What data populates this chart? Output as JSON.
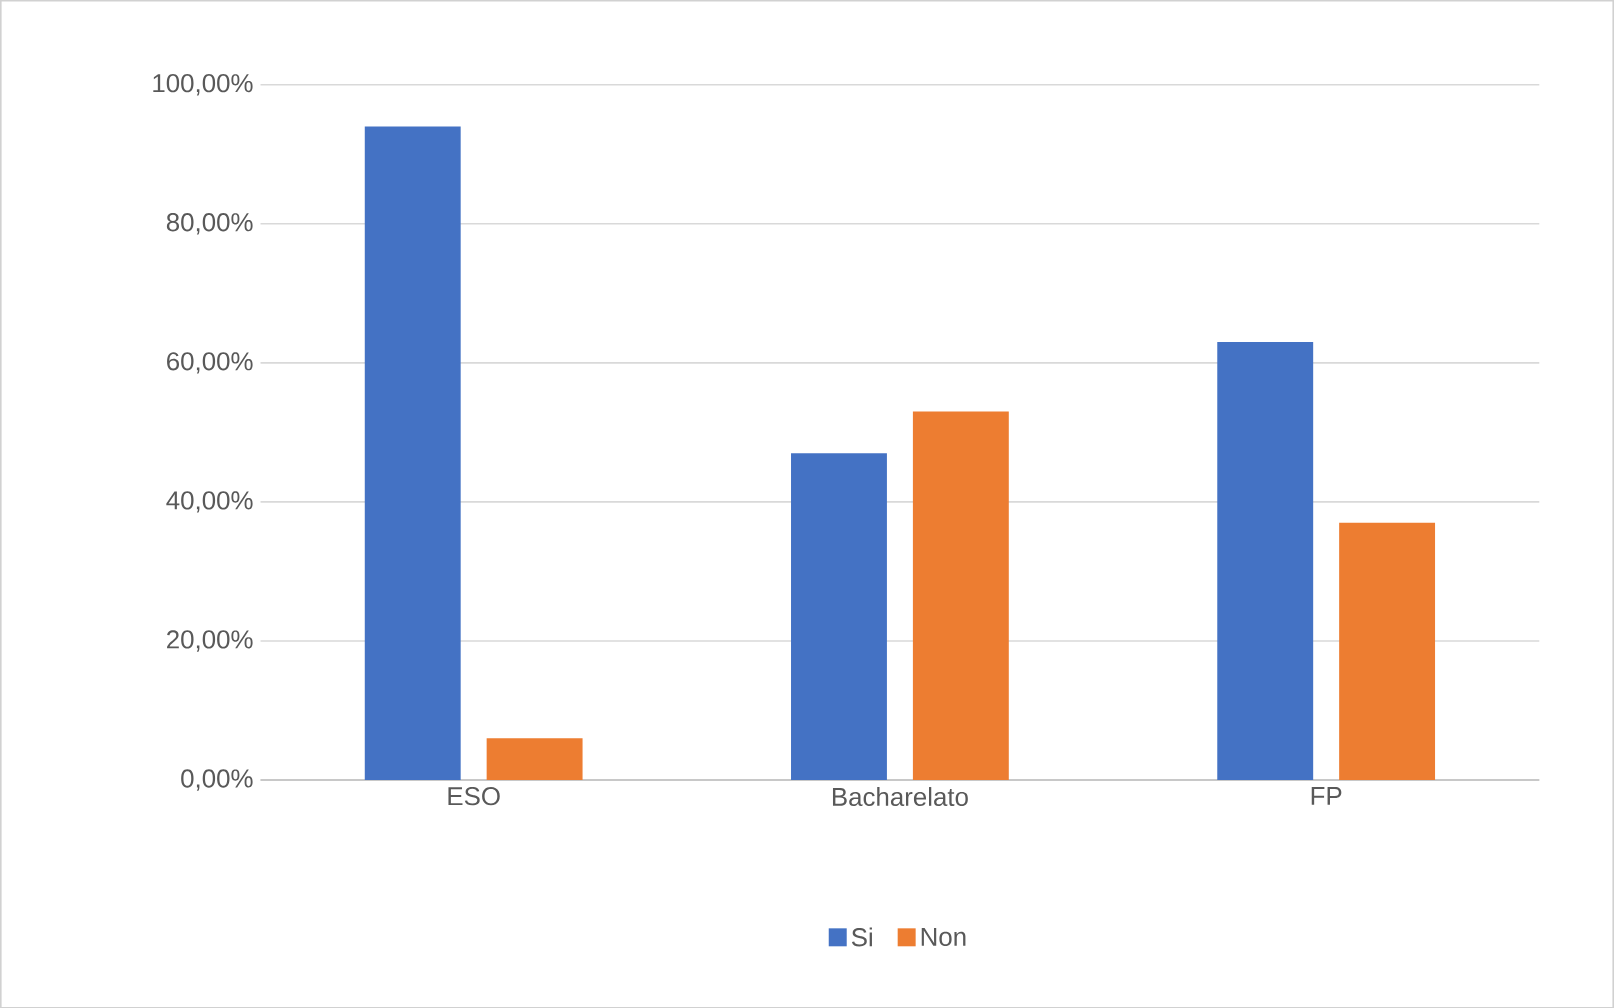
{
  "chart_data": {
    "type": "bar",
    "categories": [
      "ESO",
      "Bacharelato",
      "FP"
    ],
    "series": [
      {
        "name": "Si",
        "color": "#4472c4",
        "values": [
          94,
          47,
          63
        ]
      },
      {
        "name": "Non",
        "color": "#ed7d31",
        "values": [
          6,
          53,
          37
        ]
      }
    ],
    "ylim": [
      0,
      100
    ],
    "yticks": [
      {
        "value": 0,
        "label": "0,00%"
      },
      {
        "value": 20,
        "label": "20,00%"
      },
      {
        "value": 40,
        "label": "40,00%"
      },
      {
        "value": 60,
        "label": "60,00%"
      },
      {
        "value": 80,
        "label": "80,00%"
      },
      {
        "value": 100,
        "label": "100,00%"
      }
    ],
    "grid": "y",
    "legend": "bottom"
  }
}
